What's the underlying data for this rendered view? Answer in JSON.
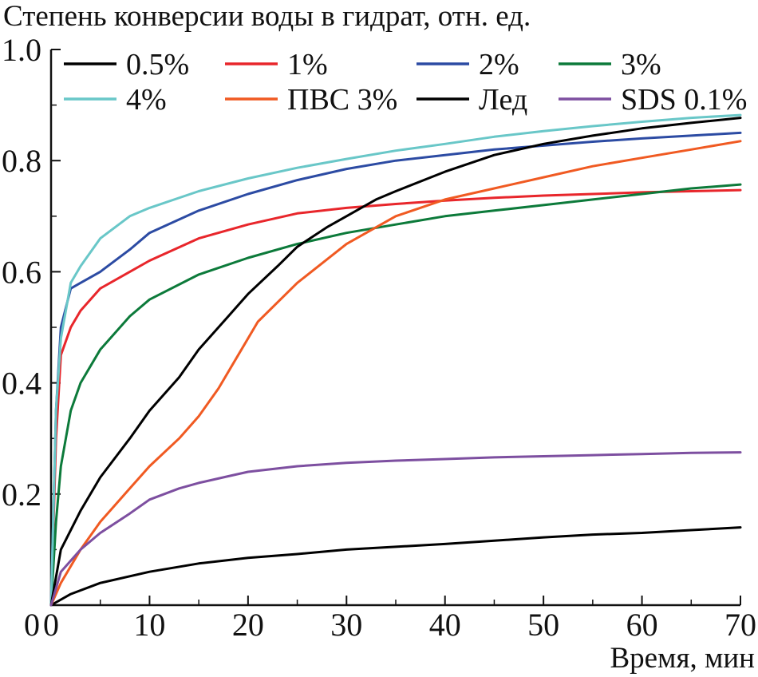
{
  "chart_data": {
    "type": "line",
    "title": "Степень конверсии воды в гидрат, отн. ед.",
    "xlabel": "Время, мин",
    "ylabel": "",
    "xlim": [
      0,
      70
    ],
    "ylim": [
      0,
      1.0
    ],
    "x_ticks": [
      0,
      10,
      20,
      30,
      40,
      50,
      60,
      70
    ],
    "y_ticks": [
      0.2,
      0.4,
      0.6,
      0.8,
      1.0
    ],
    "x_tick_labels": [
      "0",
      "10",
      "20",
      "30",
      "40",
      "50",
      "60",
      "70"
    ],
    "y_tick_labels": [
      "0.2",
      "0.4",
      "0.6",
      "0.8",
      "1.0"
    ],
    "grid": false,
    "legend_position": "top",
    "series": [
      {
        "name": "0.5%",
        "color": "#000000",
        "x": [
          0,
          2,
          5,
          10,
          15,
          20,
          25,
          30,
          35,
          40,
          45,
          50,
          55,
          60,
          65,
          70
        ],
        "y": [
          0,
          0.02,
          0.04,
          0.06,
          0.075,
          0.085,
          0.092,
          0.1,
          0.105,
          0.11,
          0.116,
          0.122,
          0.127,
          0.13,
          0.135,
          0.14
        ]
      },
      {
        "name": "1%",
        "color": "#e8262b",
        "x": [
          0,
          0.5,
          1,
          2,
          3,
          5,
          8,
          10,
          15,
          20,
          25,
          30,
          35,
          40,
          45,
          50,
          55,
          60,
          65,
          70
        ],
        "y": [
          0,
          0.3,
          0.45,
          0.5,
          0.53,
          0.57,
          0.6,
          0.62,
          0.66,
          0.685,
          0.705,
          0.715,
          0.722,
          0.728,
          0.733,
          0.737,
          0.74,
          0.743,
          0.745,
          0.747
        ]
      },
      {
        "name": "2%",
        "color": "#2c4ba3",
        "x": [
          0,
          0.5,
          1,
          2,
          3,
          5,
          8,
          10,
          15,
          20,
          25,
          30,
          35,
          40,
          45,
          50,
          55,
          60,
          65,
          70
        ],
        "y": [
          0,
          0.35,
          0.5,
          0.57,
          0.58,
          0.6,
          0.64,
          0.67,
          0.71,
          0.74,
          0.765,
          0.785,
          0.8,
          0.81,
          0.82,
          0.827,
          0.834,
          0.84,
          0.845,
          0.85
        ]
      },
      {
        "name": "3%",
        "color": "#0c7a3a",
        "x": [
          0,
          0.5,
          1,
          2,
          3,
          5,
          8,
          10,
          15,
          20,
          25,
          30,
          35,
          40,
          45,
          50,
          55,
          60,
          65,
          70
        ],
        "y": [
          0,
          0.15,
          0.25,
          0.35,
          0.4,
          0.46,
          0.52,
          0.55,
          0.595,
          0.625,
          0.65,
          0.67,
          0.685,
          0.7,
          0.71,
          0.72,
          0.73,
          0.74,
          0.75,
          0.757
        ]
      },
      {
        "name": "4%",
        "color": "#69c7c8",
        "x": [
          0,
          0.5,
          1,
          2,
          3,
          5,
          8,
          10,
          15,
          20,
          25,
          30,
          35,
          40,
          45,
          50,
          55,
          60,
          65,
          70
        ],
        "y": [
          0,
          0.35,
          0.48,
          0.58,
          0.61,
          0.66,
          0.7,
          0.715,
          0.745,
          0.768,
          0.787,
          0.803,
          0.818,
          0.83,
          0.843,
          0.853,
          0.862,
          0.87,
          0.877,
          0.882
        ]
      },
      {
        "name": "ПВС 3%",
        "color": "#f05a22",
        "x": [
          0,
          1,
          3,
          5,
          8,
          10,
          13,
          15,
          17,
          19,
          21,
          25,
          30,
          35,
          40,
          45,
          50,
          55,
          60,
          65,
          70
        ],
        "y": [
          0,
          0.04,
          0.1,
          0.15,
          0.21,
          0.25,
          0.3,
          0.34,
          0.39,
          0.45,
          0.51,
          0.58,
          0.65,
          0.7,
          0.73,
          0.75,
          0.77,
          0.79,
          0.805,
          0.82,
          0.835
        ]
      },
      {
        "name": "Лед",
        "color": "#000000",
        "x": [
          0,
          1,
          3,
          5,
          8,
          10,
          13,
          15,
          18,
          20,
          23,
          25,
          28,
          30,
          33,
          35,
          40,
          45,
          50,
          55,
          60,
          65,
          70
        ],
        "y": [
          0,
          0.1,
          0.17,
          0.23,
          0.3,
          0.35,
          0.41,
          0.46,
          0.52,
          0.56,
          0.61,
          0.645,
          0.68,
          0.7,
          0.73,
          0.745,
          0.78,
          0.81,
          0.83,
          0.845,
          0.858,
          0.868,
          0.877
        ]
      },
      {
        "name": "SDS 0.1%",
        "color": "#7d4fa0",
        "x": [
          0,
          1,
          3,
          5,
          8,
          10,
          13,
          15,
          18,
          20,
          25,
          30,
          35,
          40,
          45,
          50,
          55,
          60,
          65,
          70
        ],
        "y": [
          0,
          0.06,
          0.1,
          0.13,
          0.165,
          0.19,
          0.21,
          0.22,
          0.232,
          0.24,
          0.25,
          0.256,
          0.26,
          0.263,
          0.266,
          0.268,
          0.27,
          0.272,
          0.274,
          0.275
        ]
      }
    ]
  }
}
